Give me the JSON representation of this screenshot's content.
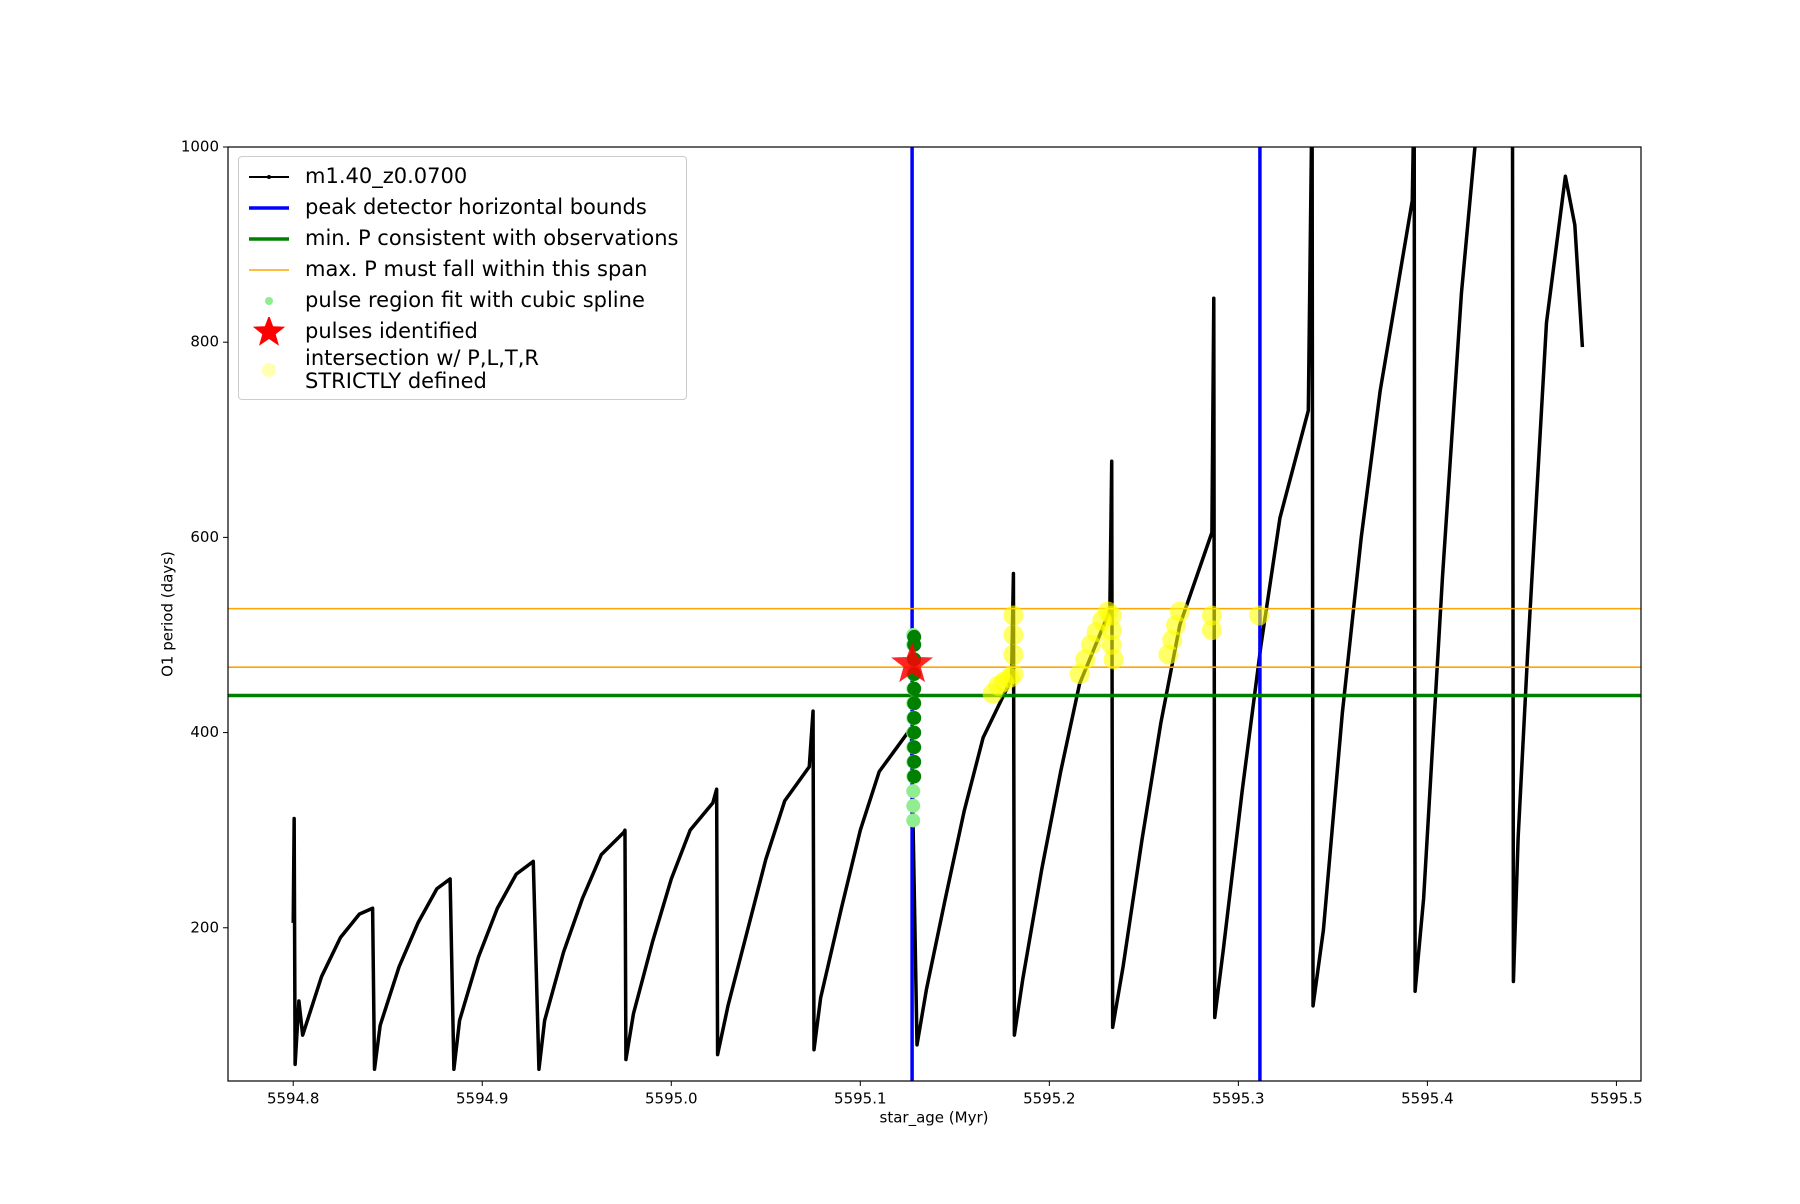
{
  "chart_data": {
    "type": "line",
    "xlabel": "star_age (Myr)",
    "ylabel": "O1 period (days)",
    "xlim": [
      5594.7655,
      5595.513
    ],
    "ylim": [
      43,
      1000
    ],
    "xticks": [
      5594.8,
      5594.9,
      {
        "value": 5595,
        "label": "5595.0"
      },
      5595.1,
      5595.2,
      5595.3,
      5595.4,
      5595.5
    ],
    "yticks": [
      200,
      400,
      600,
      800,
      1000
    ],
    "legend": "upper left",
    "series": [
      {
        "name": "m1.40_z0.0700",
        "type": "line",
        "color": "#000000",
        "x": [
          5594.8,
          5594.8005,
          5594.801,
          5594.803,
          5594.805,
          5594.815,
          5594.825,
          5594.835,
          5594.842,
          5594.843,
          5594.846,
          5594.856,
          5594.866,
          5594.876,
          5594.883,
          5594.885,
          5594.888,
          5594.898,
          5594.908,
          5594.918,
          5594.927,
          5594.93,
          5594.933,
          5594.943,
          5594.953,
          5594.963,
          5594.975,
          5594.9755,
          5594.976,
          5594.98,
          5594.99,
          5595.0,
          5595.01,
          5595.022,
          5595.024,
          5595.0245,
          5595.03,
          5595.04,
          5595.05,
          5595.06,
          5595.073,
          5595.075,
          5595.0755,
          5595.079,
          5595.09,
          5595.1,
          5595.11,
          5595.127,
          5595.13,
          5595.135,
          5595.145,
          5595.155,
          5595.165,
          5595.18,
          5595.181,
          5595.1815,
          5595.186,
          5595.196,
          5595.206,
          5595.216,
          5595.232,
          5595.233,
          5595.2335,
          5595.239,
          5595.249,
          5595.259,
          5595.269,
          5595.286,
          5595.287,
          5595.2875,
          5595.292,
          5595.302,
          5595.312,
          5595.322,
          5595.337,
          5595.339,
          5595.3395,
          5595.345,
          5595.355,
          5595.365,
          5595.375,
          5595.392,
          5595.393,
          5595.3935,
          5595.398,
          5595.408,
          5595.418,
          5595.428,
          5595.437,
          5595.445,
          5595.4455,
          5595.448,
          5595.453,
          5595.458,
          5595.463,
          5595.473,
          5595.478,
          5595.482
        ],
        "values": [
          205,
          312,
          60,
          125,
          90,
          150,
          190,
          214,
          220,
          55,
          100,
          160,
          205,
          240,
          250,
          55,
          105,
          170,
          220,
          255,
          268,
          55,
          105,
          175,
          230,
          275,
          298,
          300,
          65,
          112,
          185,
          250,
          300,
          328,
          342,
          70,
          120,
          195,
          270,
          330,
          365,
          422,
          75,
          128,
          220,
          300,
          360,
          405,
          80,
          137,
          230,
          320,
          395,
          455,
          563,
          90,
          148,
          260,
          360,
          450,
          525,
          678,
          98,
          160,
          290,
          410,
          510,
          605,
          845,
          108,
          177,
          340,
          490,
          620,
          730,
          1060,
          120,
          198,
          420,
          600,
          750,
          945,
          1060,
          135,
          230,
          560,
          850,
          1060,
          null,
          1060,
          145,
          292,
          480,
          650,
          820,
          970,
          920,
          795
        ]
      },
      {
        "name": "peak detector horizontal bounds",
        "type": "vline",
        "color": "#0000ff",
        "x": [
          5595.1274,
          5595.3114
        ]
      },
      {
        "name": "min. P consistent with observations",
        "type": "hline",
        "color": "#008000",
        "values": [
          438
        ]
      },
      {
        "name": "max. P must fall within this span",
        "type": "hline",
        "color": "#ffa500",
        "values": [
          467,
          527
        ]
      },
      {
        "name": "pulse region fit with cubic spline",
        "type": "scatter",
        "color": "#90ee90",
        "x": [
          5595.128,
          5595.128,
          5595.128,
          5595.128,
          5595.128,
          5595.128,
          5595.128,
          5595.128,
          5595.128,
          5595.128,
          5595.128,
          5595.128,
          5595.128,
          5595.128
        ],
        "values": [
          310,
          325,
          340,
          355,
          370,
          385,
          400,
          415,
          430,
          445,
          460,
          475,
          490,
          500
        ]
      },
      {
        "type": "scatter",
        "color": "#008000",
        "x": [
          5595.1285,
          5595.1285,
          5595.1285,
          5595.1285,
          5595.1285,
          5595.1285,
          5595.1285,
          5595.1285,
          5595.1285,
          5595.1285,
          5595.1285
        ],
        "values": [
          355,
          370,
          385,
          400,
          415,
          430,
          445,
          460,
          475,
          490,
          498
        ]
      },
      {
        "name": "pulses identified",
        "type": "star",
        "color": "#ff0000",
        "x": [
          5595.1274
        ],
        "values": [
          470
        ]
      },
      {
        "name": "intersection w/ P,L,T,R\nSTRICTLY defined",
        "type": "scatter",
        "color": "#ffff00",
        "alpha": 0.6,
        "x": [
          5595.17,
          5595.173,
          5595.176,
          5595.179,
          5595.181,
          5595.181,
          5595.181,
          5595.181,
          5595.216,
          5595.219,
          5595.222,
          5595.225,
          5595.228,
          5595.231,
          5595.233,
          5595.233,
          5595.233,
          5595.234,
          5595.263,
          5595.265,
          5595.267,
          5595.269,
          5595.286,
          5595.286,
          5595.311
        ],
        "values": [
          440,
          448,
          452,
          456,
          460,
          480,
          500,
          520,
          460,
          475,
          490,
          503,
          515,
          524,
          520,
          505,
          490,
          475,
          480,
          495,
          510,
          524,
          505,
          520,
          520
        ]
      }
    ]
  }
}
